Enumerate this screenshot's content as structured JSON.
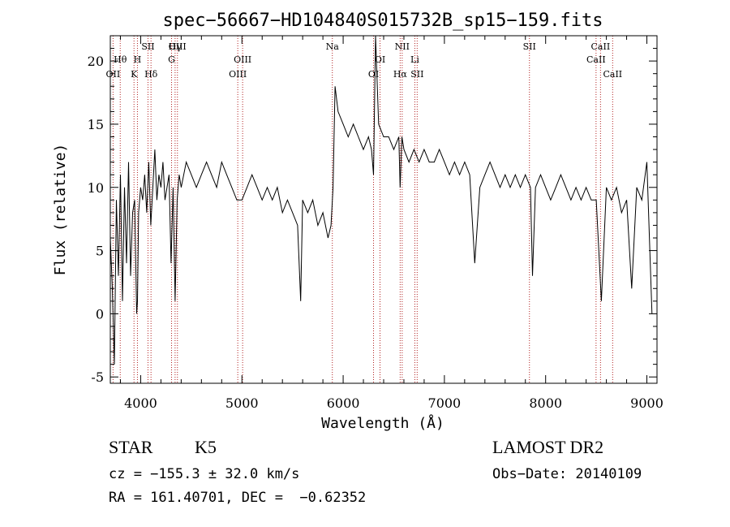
{
  "chart_data": {
    "type": "line",
    "title": "spec−56667−HD104840S015732B_sp15−159.fits",
    "xlabel": "Wavelength (Å)",
    "ylabel": "Flux (relative)",
    "xlim": [
      3700,
      9100
    ],
    "ylim": [
      -5.5,
      22
    ],
    "xticks": [
      4000,
      5000,
      6000,
      7000,
      8000,
      9000
    ],
    "yticks": [
      -5,
      0,
      5,
      10,
      15,
      20
    ],
    "grid": false,
    "series": [
      {
        "color": "#000000",
        "x": [
          3700,
          3720,
          3740,
          3760,
          3780,
          3800,
          3820,
          3840,
          3860,
          3880,
          3900,
          3920,
          3940,
          3960,
          3968,
          3980,
          4000,
          4020,
          4040,
          4060,
          4080,
          4100,
          4120,
          4140,
          4160,
          4180,
          4200,
          4220,
          4240,
          4260,
          4280,
          4300,
          4320,
          4340,
          4360,
          4380,
          4400,
          4450,
          4500,
          4550,
          4600,
          4650,
          4700,
          4750,
          4800,
          4850,
          4900,
          4950,
          5000,
          5050,
          5100,
          5150,
          5200,
          5250,
          5300,
          5350,
          5400,
          5450,
          5500,
          5550,
          5580,
          5600,
          5650,
          5700,
          5750,
          5800,
          5850,
          5880,
          5900,
          5920,
          5950,
          6000,
          6050,
          6100,
          6150,
          6200,
          6250,
          6280,
          6300,
          6320,
          6350,
          6400,
          6450,
          6500,
          6550,
          6563,
          6580,
          6600,
          6650,
          6700,
          6750,
          6800,
          6850,
          6900,
          6950,
          7000,
          7050,
          7100,
          7150,
          7200,
          7250,
          7300,
          7350,
          7400,
          7450,
          7500,
          7550,
          7600,
          7650,
          7700,
          7750,
          7800,
          7850,
          7870,
          7900,
          7950,
          8000,
          8050,
          8100,
          8150,
          8200,
          8250,
          8300,
          8350,
          8400,
          8450,
          8500,
          8550,
          8600,
          8650,
          8700,
          8750,
          8800,
          8850,
          8900,
          8950,
          9000,
          9050
        ],
        "y": [
          6,
          2,
          -4,
          9,
          3,
          11,
          1,
          10,
          4,
          12,
          3,
          8,
          9,
          0,
          1,
          8,
          10,
          9,
          11,
          8,
          12,
          7,
          10,
          13,
          9,
          11,
          10,
          12,
          9,
          10,
          11,
          4,
          10,
          1,
          9,
          11,
          10,
          12,
          11,
          10,
          11,
          12,
          11,
          10,
          12,
          11,
          10,
          9,
          9,
          10,
          11,
          10,
          9,
          10,
          9,
          10,
          8,
          9,
          8,
          7,
          1,
          9,
          8,
          9,
          7,
          8,
          6,
          7,
          10,
          18,
          16,
          15,
          14,
          15,
          14,
          13,
          14,
          13,
          11,
          22,
          15,
          14,
          14,
          13,
          14,
          10,
          14,
          13,
          12,
          13,
          12,
          13,
          12,
          12,
          13,
          12,
          11,
          12,
          11,
          12,
          11,
          4,
          10,
          11,
          12,
          11,
          10,
          11,
          10,
          11,
          10,
          11,
          10,
          3,
          10,
          11,
          10,
          9,
          10,
          11,
          10,
          9,
          10,
          9,
          10,
          9,
          9,
          1,
          10,
          9,
          10,
          8,
          9,
          2,
          10,
          9,
          12,
          0
        ]
      }
    ],
    "line_markers": [
      {
        "label": "Hγ",
        "x": 4340,
        "row": 1
      },
      {
        "label": "Hθ",
        "x": 3798,
        "row": 2
      },
      {
        "label": "OII",
        "x": 3727,
        "row": 3
      },
      {
        "label": "H",
        "x": 3968,
        "row": 2
      },
      {
        "label": "K",
        "x": 3934,
        "row": 3
      },
      {
        "label": "SII",
        "x": 4072,
        "row": 1
      },
      {
        "label": "Hδ",
        "x": 4102,
        "row": 3
      },
      {
        "label": "OIII",
        "x": 4363,
        "row": 1
      },
      {
        "label": "G",
        "x": 4305,
        "row": 2
      },
      {
        "label": "OIII",
        "x": 5007,
        "row": 2
      },
      {
        "label": "OIII",
        "x": 4959,
        "row": 3
      },
      {
        "label": "Na",
        "x": 5893,
        "row": 1
      },
      {
        "label": "OI",
        "x": 6364,
        "row": 2
      },
      {
        "label": "OI",
        "x": 6300,
        "row": 3
      },
      {
        "label": "NII",
        "x": 6583,
        "row": 1
      },
      {
        "label": "Li",
        "x": 6708,
        "row": 2
      },
      {
        "label": "Hα",
        "x": 6563,
        "row": 3
      },
      {
        "label": "SII",
        "x": 6731,
        "row": 3
      },
      {
        "label": "SII",
        "x": 7840,
        "row": 1
      },
      {
        "label": "CaII",
        "x": 8542,
        "row": 1
      },
      {
        "label": "CaII",
        "x": 8498,
        "row": 2
      },
      {
        "label": "CaII",
        "x": 8662,
        "row": 3
      }
    ]
  },
  "info": {
    "object_class": "STAR",
    "subclass": "K5",
    "survey": "LAMOST DR2",
    "cz": "cz = −155.3 ± 32.0 km/s",
    "obs_date": "Obs−Date: 20140109",
    "radec": "RA = 161.40701, DEC =  −0.62352"
  }
}
